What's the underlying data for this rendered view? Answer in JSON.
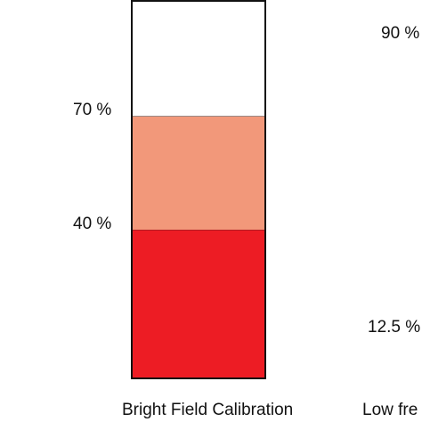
{
  "left_panel": {
    "caption": "Bright Field Calibration",
    "thresholds": [
      {
        "label": "70 %",
        "value": 70
      },
      {
        "label": "40 %",
        "value": 40
      }
    ],
    "bands": [
      {
        "name": "top",
        "color": "#ffffff"
      },
      {
        "name": "middle",
        "color": "#f2987a"
      },
      {
        "name": "bottom",
        "color": "#ed1c24"
      }
    ]
  },
  "right_panel": {
    "caption": "Low fre",
    "thresholds": [
      {
        "label": "90 %",
        "value": 90
      },
      {
        "label": "12.5 %",
        "value": 12.5
      }
    ]
  }
}
